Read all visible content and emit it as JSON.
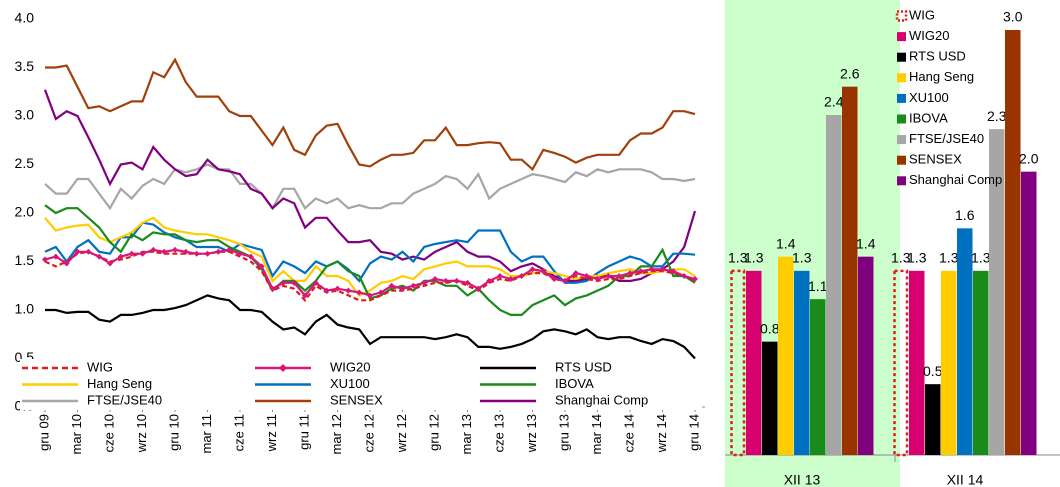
{
  "chart_data": [
    {
      "type": "line",
      "categories": [
        "gru 09",
        null,
        null,
        "mar 10",
        null,
        null,
        "cze 10",
        null,
        null,
        "wrz 10",
        null,
        null,
        "gru 10",
        null,
        null,
        "mar 11",
        null,
        null,
        "cze 11",
        null,
        null,
        "wrz 11",
        null,
        null,
        "gru 11",
        null,
        null,
        "mar 12",
        null,
        null,
        "cze 12",
        null,
        null,
        "wrz 12",
        null,
        null,
        "gru 12",
        null,
        null,
        "mar 13",
        null,
        null,
        "cze 13",
        null,
        null,
        "wrz 13",
        null,
        null,
        "gru 13",
        null,
        null,
        "mar 14",
        null,
        null,
        "cze 14",
        null,
        null,
        "wrz 14",
        null,
        null,
        "gru 14"
      ],
      "ylim": [
        0,
        4
      ],
      "yticks": [
        {
          "value": 0,
          "label": "0.0"
        },
        0.5,
        {
          "value": 1,
          "label": "1.0"
        },
        1.5,
        {
          "value": 2,
          "label": "2.0"
        },
        2.5,
        {
          "value": 3,
          "label": "3.0"
        },
        3.5,
        {
          "value": 4,
          "label": "4.0"
        }
      ],
      "grid": false,
      "series": [
        {
          "name": "WIG",
          "color": "#e31a1c",
          "line_style": "dashed",
          "values": [
            1.5,
            1.45,
            1.5,
            1.58,
            1.6,
            1.55,
            1.5,
            1.52,
            1.55,
            1.6,
            1.6,
            1.58,
            1.58,
            1.58,
            1.58,
            1.58,
            1.6,
            1.6,
            1.55,
            1.5,
            1.4,
            1.2,
            1.25,
            1.22,
            1.1,
            1.25,
            1.18,
            1.2,
            1.15,
            1.1,
            1.1,
            1.15,
            1.2,
            1.2,
            1.22,
            1.25,
            1.28,
            1.28,
            1.3,
            1.25,
            1.2,
            1.28,
            1.32,
            1.3,
            1.35,
            1.38,
            1.38,
            1.32,
            1.3,
            1.35,
            1.32,
            1.3,
            1.32,
            1.32,
            1.35,
            1.38,
            1.4,
            1.4,
            1.38,
            1.35,
            1.3
          ]
        },
        {
          "name": "WIG20",
          "color": "#d6187a",
          "markers": "diamond",
          "values": [
            1.52,
            1.55,
            1.48,
            1.6,
            1.6,
            1.55,
            1.48,
            1.55,
            1.58,
            1.58,
            1.62,
            1.6,
            1.62,
            1.6,
            1.58,
            1.58,
            1.6,
            1.62,
            1.58,
            1.55,
            1.45,
            1.22,
            1.28,
            1.28,
            1.15,
            1.28,
            1.2,
            1.22,
            1.2,
            1.18,
            1.15,
            1.18,
            1.25,
            1.22,
            1.25,
            1.28,
            1.32,
            1.3,
            1.3,
            1.28,
            1.22,
            1.3,
            1.35,
            1.32,
            1.35,
            1.42,
            1.4,
            1.32,
            1.3,
            1.38,
            1.35,
            1.32,
            1.35,
            1.35,
            1.38,
            1.4,
            1.42,
            1.42,
            1.4,
            1.35,
            1.32
          ]
        },
        {
          "name": "RTS USD",
          "color": "#000000",
          "values": [
            1.0,
            1.0,
            0.97,
            0.98,
            0.98,
            0.9,
            0.88,
            0.95,
            0.95,
            0.97,
            1.0,
            1.0,
            1.02,
            1.05,
            1.1,
            1.15,
            1.12,
            1.1,
            1.0,
            1.0,
            0.98,
            0.88,
            0.8,
            0.82,
            0.75,
            0.88,
            0.95,
            0.85,
            0.82,
            0.8,
            0.65,
            0.72,
            0.72,
            0.72,
            0.72,
            0.72,
            0.7,
            0.72,
            0.75,
            0.72,
            0.62,
            0.62,
            0.6,
            0.62,
            0.65,
            0.7,
            0.78,
            0.8,
            0.78,
            0.75,
            0.8,
            0.72,
            0.7,
            0.72,
            0.72,
            0.68,
            0.65,
            0.7,
            0.68,
            0.62,
            0.5
          ]
        },
        {
          "name": "Hang Seng",
          "color": "#ffcc00",
          "values": [
            1.95,
            1.82,
            1.85,
            1.87,
            1.88,
            1.75,
            1.7,
            1.75,
            1.8,
            1.9,
            1.95,
            1.85,
            1.82,
            1.8,
            1.78,
            1.78,
            1.75,
            1.72,
            1.68,
            1.6,
            1.55,
            1.3,
            1.4,
            1.3,
            1.3,
            1.45,
            1.35,
            1.35,
            1.3,
            1.15,
            1.2,
            1.28,
            1.3,
            1.35,
            1.32,
            1.42,
            1.45,
            1.48,
            1.5,
            1.45,
            1.45,
            1.45,
            1.42,
            1.35,
            1.35,
            1.38,
            1.4,
            1.38,
            1.35,
            1.32,
            1.35,
            1.35,
            1.38,
            1.4,
            1.42,
            1.38,
            1.38,
            1.4,
            1.42,
            1.42,
            1.35
          ]
        },
        {
          "name": "XU100",
          "color": "#0070c0",
          "values": [
            1.6,
            1.65,
            1.5,
            1.65,
            1.72,
            1.6,
            1.58,
            1.75,
            1.75,
            1.9,
            1.88,
            1.8,
            1.75,
            1.72,
            1.65,
            1.65,
            1.65,
            1.6,
            1.68,
            1.65,
            1.62,
            1.35,
            1.5,
            1.45,
            1.38,
            1.5,
            1.45,
            1.5,
            1.42,
            1.3,
            1.48,
            1.55,
            1.52,
            1.6,
            1.5,
            1.65,
            1.68,
            1.7,
            1.72,
            1.7,
            1.82,
            1.82,
            1.82,
            1.6,
            1.5,
            1.55,
            1.55,
            1.4,
            1.28,
            1.28,
            1.3,
            1.38,
            1.45,
            1.5,
            1.55,
            1.52,
            1.45,
            1.45,
            1.58,
            1.58,
            1.57
          ]
        },
        {
          "name": "IBOVA",
          "color": "#1a8a1a",
          "values": [
            2.08,
            2.0,
            2.05,
            2.05,
            1.95,
            1.85,
            1.7,
            1.6,
            1.78,
            1.72,
            1.8,
            1.78,
            1.78,
            1.72,
            1.7,
            1.72,
            1.72,
            1.65,
            1.6,
            1.55,
            1.42,
            1.2,
            1.3,
            1.3,
            1.2,
            1.3,
            1.45,
            1.5,
            1.4,
            1.35,
            1.12,
            1.15,
            1.22,
            1.25,
            1.2,
            1.3,
            1.3,
            1.25,
            1.25,
            1.15,
            1.22,
            1.1,
            1.0,
            0.95,
            0.95,
            1.05,
            1.1,
            1.15,
            1.05,
            1.12,
            1.15,
            1.2,
            1.25,
            1.35,
            1.35,
            1.45,
            1.45,
            1.62,
            1.35,
            1.35,
            1.28
          ]
        },
        {
          "name": "FTSE/JSE40",
          "color": "#a6a6a6",
          "values": [
            2.3,
            2.2,
            2.2,
            2.35,
            2.35,
            2.2,
            2.05,
            2.25,
            2.15,
            2.28,
            2.35,
            2.3,
            2.45,
            2.42,
            2.45,
            2.5,
            2.45,
            2.45,
            2.3,
            2.3,
            2.2,
            2.05,
            2.25,
            2.25,
            2.05,
            2.15,
            2.1,
            2.15,
            2.05,
            2.08,
            2.05,
            2.05,
            2.1,
            2.1,
            2.2,
            2.25,
            2.3,
            2.38,
            2.35,
            2.25,
            2.4,
            2.15,
            2.25,
            2.3,
            2.35,
            2.4,
            2.38,
            2.35,
            2.32,
            2.42,
            2.38,
            2.45,
            2.42,
            2.45,
            2.45,
            2.45,
            2.42,
            2.35,
            2.35,
            2.33,
            2.35
          ]
        },
        {
          "name": "SENSEX",
          "color": "#a0400a",
          "values": [
            3.5,
            3.5,
            3.52,
            3.3,
            3.08,
            3.1,
            3.05,
            3.1,
            3.15,
            3.15,
            3.45,
            3.4,
            3.58,
            3.35,
            3.2,
            3.2,
            3.2,
            3.05,
            3.0,
            3.0,
            2.85,
            2.7,
            2.88,
            2.65,
            2.6,
            2.8,
            2.9,
            2.92,
            2.7,
            2.5,
            2.48,
            2.55,
            2.6,
            2.6,
            2.62,
            2.75,
            2.75,
            2.88,
            2.7,
            2.7,
            2.72,
            2.73,
            2.72,
            2.55,
            2.55,
            2.45,
            2.65,
            2.62,
            2.58,
            2.52,
            2.57,
            2.6,
            2.6,
            2.6,
            2.75,
            2.82,
            2.82,
            2.88,
            3.05,
            3.05,
            3.02
          ]
        },
        {
          "name": "Shanghai Comp",
          "color": "#800080",
          "values": [
            3.27,
            2.97,
            3.05,
            3.0,
            2.78,
            2.55,
            2.3,
            2.5,
            2.52,
            2.45,
            2.68,
            2.55,
            2.45,
            2.38,
            2.4,
            2.55,
            2.45,
            2.43,
            2.4,
            2.25,
            2.2,
            2.05,
            2.15,
            2.1,
            1.85,
            1.95,
            1.95,
            1.82,
            1.7,
            1.7,
            1.72,
            1.6,
            1.58,
            1.52,
            1.55,
            1.52,
            1.6,
            1.65,
            1.7,
            1.6,
            1.55,
            1.55,
            1.5,
            1.4,
            1.45,
            1.48,
            1.42,
            1.35,
            1.3,
            1.3,
            1.32,
            1.35,
            1.35,
            1.3,
            1.3,
            1.32,
            1.38,
            1.42,
            1.5,
            1.65,
            2.02
          ]
        }
      ]
    },
    {
      "type": "bar",
      "categories": [
        "XII 13",
        "XII 14"
      ],
      "series": [
        {
          "name": "WIG",
          "color": "#e31a1c",
          "style": "dashed-outline",
          "values": [
            1.3,
            1.3
          ],
          "value_labels": [
            "1.3",
            "1.3"
          ]
        },
        {
          "name": "WIG20",
          "color": "#d6006f",
          "values": [
            1.3,
            1.3
          ],
          "value_labels": [
            "1.3",
            "1.3"
          ]
        },
        {
          "name": "RTS USD",
          "color": "#000000",
          "values": [
            0.8,
            0.5
          ],
          "value_labels": [
            "0.8",
            "0.5"
          ]
        },
        {
          "name": "Hang Seng",
          "color": "#ffcc00",
          "values": [
            1.4,
            1.3
          ],
          "value_labels": [
            "1.4",
            "1.3"
          ]
        },
        {
          "name": "XU100",
          "color": "#0070c0",
          "values": [
            1.3,
            1.6
          ],
          "value_labels": [
            "1.3",
            "1.6"
          ]
        },
        {
          "name": "IBOVA",
          "color": "#1a8a1a",
          "values": [
            1.1,
            1.3
          ],
          "value_labels": [
            "1.1",
            "1.3"
          ]
        },
        {
          "name": "FTSE/JSE40",
          "color": "#a6a6a6",
          "values": [
            2.4,
            2.3
          ],
          "value_labels": [
            "2.4",
            "2.3"
          ]
        },
        {
          "name": "SENSEX",
          "color": "#993300",
          "values": [
            2.6,
            3.0
          ],
          "value_labels": [
            "2.6",
            "3.0"
          ]
        },
        {
          "name": "Shanghai Comp",
          "color": "#800080",
          "values": [
            1.4,
            2.0
          ],
          "value_labels": [
            "1.4",
            "2.0"
          ]
        }
      ]
    }
  ]
}
